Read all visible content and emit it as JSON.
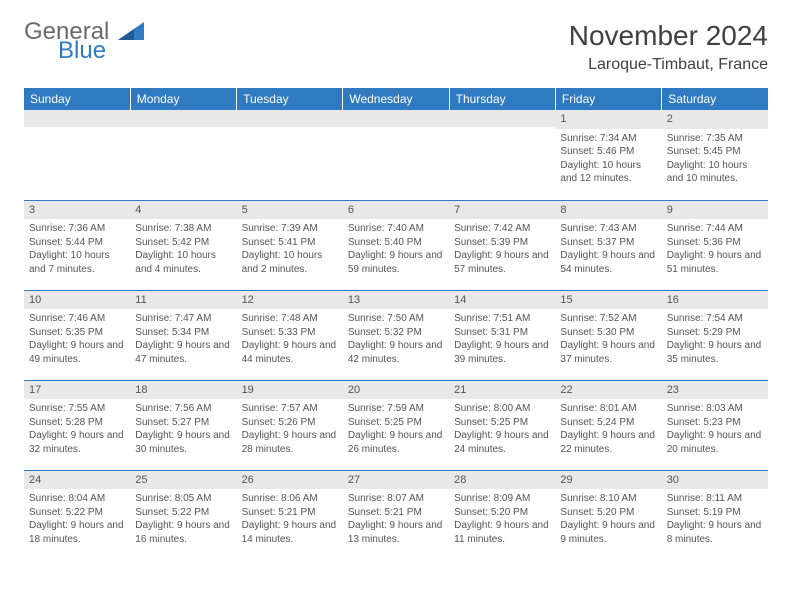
{
  "logo": {
    "word1": "General",
    "word2": "Blue",
    "triangle_color": "#2f7ac0",
    "word1_color": "#6a6a6a",
    "word2_color": "#2f7ac0"
  },
  "title": "November 2024",
  "location": "Laroque-Timbaut, France",
  "colors": {
    "header_bg": "#2f7ac0",
    "header_text": "#ffffff",
    "row_divider": "#2f7ac0",
    "daynum_bg": "#e8e8e8",
    "text": "#555555"
  },
  "weekdays": [
    "Sunday",
    "Monday",
    "Tuesday",
    "Wednesday",
    "Thursday",
    "Friday",
    "Saturday"
  ],
  "weeks": [
    [
      {
        "empty": true
      },
      {
        "empty": true
      },
      {
        "empty": true
      },
      {
        "empty": true
      },
      {
        "empty": true
      },
      {
        "day": "1",
        "sunrise": "Sunrise: 7:34 AM",
        "sunset": "Sunset: 5:46 PM",
        "daylight": "Daylight: 10 hours and 12 minutes."
      },
      {
        "day": "2",
        "sunrise": "Sunrise: 7:35 AM",
        "sunset": "Sunset: 5:45 PM",
        "daylight": "Daylight: 10 hours and 10 minutes."
      }
    ],
    [
      {
        "day": "3",
        "sunrise": "Sunrise: 7:36 AM",
        "sunset": "Sunset: 5:44 PM",
        "daylight": "Daylight: 10 hours and 7 minutes."
      },
      {
        "day": "4",
        "sunrise": "Sunrise: 7:38 AM",
        "sunset": "Sunset: 5:42 PM",
        "daylight": "Daylight: 10 hours and 4 minutes."
      },
      {
        "day": "5",
        "sunrise": "Sunrise: 7:39 AM",
        "sunset": "Sunset: 5:41 PM",
        "daylight": "Daylight: 10 hours and 2 minutes."
      },
      {
        "day": "6",
        "sunrise": "Sunrise: 7:40 AM",
        "sunset": "Sunset: 5:40 PM",
        "daylight": "Daylight: 9 hours and 59 minutes."
      },
      {
        "day": "7",
        "sunrise": "Sunrise: 7:42 AM",
        "sunset": "Sunset: 5:39 PM",
        "daylight": "Daylight: 9 hours and 57 minutes."
      },
      {
        "day": "8",
        "sunrise": "Sunrise: 7:43 AM",
        "sunset": "Sunset: 5:37 PM",
        "daylight": "Daylight: 9 hours and 54 minutes."
      },
      {
        "day": "9",
        "sunrise": "Sunrise: 7:44 AM",
        "sunset": "Sunset: 5:36 PM",
        "daylight": "Daylight: 9 hours and 51 minutes."
      }
    ],
    [
      {
        "day": "10",
        "sunrise": "Sunrise: 7:46 AM",
        "sunset": "Sunset: 5:35 PM",
        "daylight": "Daylight: 9 hours and 49 minutes."
      },
      {
        "day": "11",
        "sunrise": "Sunrise: 7:47 AM",
        "sunset": "Sunset: 5:34 PM",
        "daylight": "Daylight: 9 hours and 47 minutes."
      },
      {
        "day": "12",
        "sunrise": "Sunrise: 7:48 AM",
        "sunset": "Sunset: 5:33 PM",
        "daylight": "Daylight: 9 hours and 44 minutes."
      },
      {
        "day": "13",
        "sunrise": "Sunrise: 7:50 AM",
        "sunset": "Sunset: 5:32 PM",
        "daylight": "Daylight: 9 hours and 42 minutes."
      },
      {
        "day": "14",
        "sunrise": "Sunrise: 7:51 AM",
        "sunset": "Sunset: 5:31 PM",
        "daylight": "Daylight: 9 hours and 39 minutes."
      },
      {
        "day": "15",
        "sunrise": "Sunrise: 7:52 AM",
        "sunset": "Sunset: 5:30 PM",
        "daylight": "Daylight: 9 hours and 37 minutes."
      },
      {
        "day": "16",
        "sunrise": "Sunrise: 7:54 AM",
        "sunset": "Sunset: 5:29 PM",
        "daylight": "Daylight: 9 hours and 35 minutes."
      }
    ],
    [
      {
        "day": "17",
        "sunrise": "Sunrise: 7:55 AM",
        "sunset": "Sunset: 5:28 PM",
        "daylight": "Daylight: 9 hours and 32 minutes."
      },
      {
        "day": "18",
        "sunrise": "Sunrise: 7:56 AM",
        "sunset": "Sunset: 5:27 PM",
        "daylight": "Daylight: 9 hours and 30 minutes."
      },
      {
        "day": "19",
        "sunrise": "Sunrise: 7:57 AM",
        "sunset": "Sunset: 5:26 PM",
        "daylight": "Daylight: 9 hours and 28 minutes."
      },
      {
        "day": "20",
        "sunrise": "Sunrise: 7:59 AM",
        "sunset": "Sunset: 5:25 PM",
        "daylight": "Daylight: 9 hours and 26 minutes."
      },
      {
        "day": "21",
        "sunrise": "Sunrise: 8:00 AM",
        "sunset": "Sunset: 5:25 PM",
        "daylight": "Daylight: 9 hours and 24 minutes."
      },
      {
        "day": "22",
        "sunrise": "Sunrise: 8:01 AM",
        "sunset": "Sunset: 5:24 PM",
        "daylight": "Daylight: 9 hours and 22 minutes."
      },
      {
        "day": "23",
        "sunrise": "Sunrise: 8:03 AM",
        "sunset": "Sunset: 5:23 PM",
        "daylight": "Daylight: 9 hours and 20 minutes."
      }
    ],
    [
      {
        "day": "24",
        "sunrise": "Sunrise: 8:04 AM",
        "sunset": "Sunset: 5:22 PM",
        "daylight": "Daylight: 9 hours and 18 minutes."
      },
      {
        "day": "25",
        "sunrise": "Sunrise: 8:05 AM",
        "sunset": "Sunset: 5:22 PM",
        "daylight": "Daylight: 9 hours and 16 minutes."
      },
      {
        "day": "26",
        "sunrise": "Sunrise: 8:06 AM",
        "sunset": "Sunset: 5:21 PM",
        "daylight": "Daylight: 9 hours and 14 minutes."
      },
      {
        "day": "27",
        "sunrise": "Sunrise: 8:07 AM",
        "sunset": "Sunset: 5:21 PM",
        "daylight": "Daylight: 9 hours and 13 minutes."
      },
      {
        "day": "28",
        "sunrise": "Sunrise: 8:09 AM",
        "sunset": "Sunset: 5:20 PM",
        "daylight": "Daylight: 9 hours and 11 minutes."
      },
      {
        "day": "29",
        "sunrise": "Sunrise: 8:10 AM",
        "sunset": "Sunset: 5:20 PM",
        "daylight": "Daylight: 9 hours and 9 minutes."
      },
      {
        "day": "30",
        "sunrise": "Sunrise: 8:11 AM",
        "sunset": "Sunset: 5:19 PM",
        "daylight": "Daylight: 9 hours and 8 minutes."
      }
    ]
  ]
}
